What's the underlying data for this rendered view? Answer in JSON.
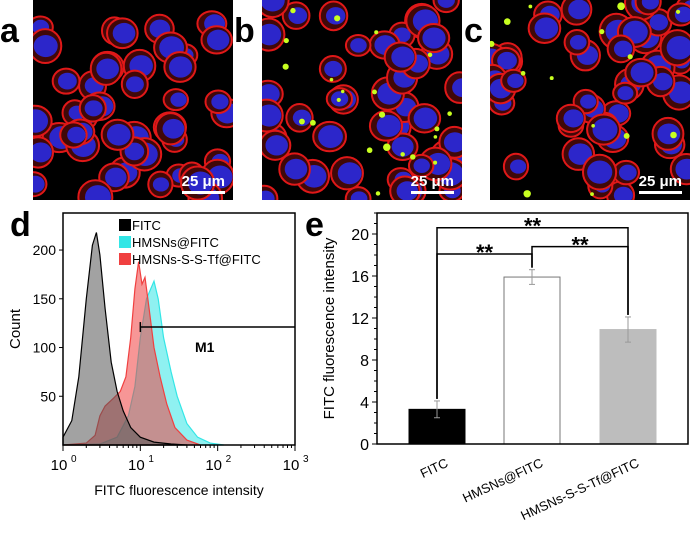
{
  "panels": {
    "a": {
      "label": "a",
      "scale_bar": "25 μm",
      "green_spots": 0
    },
    "b": {
      "label": "b",
      "scale_bar": "25 μm",
      "green_spots": 22
    },
    "c": {
      "label": "c",
      "scale_bar": "25 μm",
      "green_spots": 14
    },
    "d": {
      "label": "d"
    },
    "e": {
      "label": "e"
    }
  },
  "colors": {
    "nucleus": "#2a2ae0",
    "membrane": "#e01818",
    "fitc": "#c8ff20"
  },
  "chart_data": [
    {
      "type": "area",
      "panel": "d",
      "xlabel": "FITC fluorescence intensity",
      "ylabel": "Count",
      "xscale": "log",
      "xlim": [
        1,
        1000
      ],
      "ylim": [
        0,
        238
      ],
      "xticks": [
        {
          "v": 1,
          "base": "10",
          "exp": "0"
        },
        {
          "v": 10,
          "base": "10",
          "exp": "1"
        },
        {
          "v": 100,
          "base": "10",
          "exp": "2"
        },
        {
          "v": 1000,
          "base": "10",
          "exp": "3"
        }
      ],
      "yticks": [
        50,
        100,
        150,
        200
      ],
      "legend_position": "top",
      "gate": {
        "label": "M1",
        "from": 10,
        "to": 1000,
        "count": 121
      },
      "series": [
        {
          "name": "HMSNs@FITC",
          "color": "#33e6e6",
          "points": [
            [
              1,
              0
            ],
            [
              3,
              1
            ],
            [
              5,
              8
            ],
            [
              7,
              30
            ],
            [
              8.5,
              60
            ],
            [
              10,
              110
            ],
            [
              12,
              150
            ],
            [
              15,
              168
            ],
            [
              17,
              150
            ],
            [
              20,
              110
            ],
            [
              25,
              75
            ],
            [
              30,
              50
            ],
            [
              40,
              22
            ],
            [
              55,
              8
            ],
            [
              80,
              2
            ],
            [
              120,
              0
            ]
          ]
        },
        {
          "name": "HMSNs-S-S-Tf@FITC",
          "color": "#f04040",
          "points": [
            [
              1,
              0
            ],
            [
              2,
              2
            ],
            [
              2.6,
              10
            ],
            [
              3,
              30
            ],
            [
              3.5,
              40
            ],
            [
              4.5,
              48
            ],
            [
              5.5,
              55
            ],
            [
              6.5,
              70
            ],
            [
              7.5,
              110
            ],
            [
              8.5,
              160
            ],
            [
              9.5,
              188
            ],
            [
              10.5,
              165
            ],
            [
              11.5,
              172
            ],
            [
              13,
              140
            ],
            [
              15,
              100
            ],
            [
              18,
              70
            ],
            [
              22,
              42
            ],
            [
              28,
              18
            ],
            [
              40,
              5
            ],
            [
              60,
              0
            ]
          ]
        },
        {
          "name": "FITC",
          "color": "#555555",
          "points": [
            [
              1,
              8
            ],
            [
              1.3,
              25
            ],
            [
              1.6,
              70
            ],
            [
              2,
              150
            ],
            [
              2.4,
              205
            ],
            [
              2.7,
              218
            ],
            [
              3,
              195
            ],
            [
              3.5,
              140
            ],
            [
              4.2,
              85
            ],
            [
              5,
              55
            ],
            [
              6,
              35
            ],
            [
              7.5,
              18
            ],
            [
              10,
              8
            ],
            [
              15,
              3
            ],
            [
              25,
              1
            ],
            [
              40,
              0
            ]
          ]
        }
      ]
    },
    {
      "type": "bar",
      "panel": "e",
      "ylabel": "FITC fluorescence intensity",
      "ylim": [
        0,
        22
      ],
      "yticks": [
        0,
        4,
        8,
        12,
        16,
        20
      ],
      "categories": [
        "FITC",
        "HMSNs@FITC",
        "HMSNs-S-S-Tf@FITC"
      ],
      "values": [
        3.3,
        15.9,
        10.9
      ],
      "errors": [
        0.8,
        0.7,
        1.2
      ],
      "bar_colors": [
        "#000000",
        "#ffffff",
        "#bdbdbd"
      ],
      "significance": [
        {
          "from": 0,
          "to": 2,
          "level": 20.6,
          "label": "**"
        },
        {
          "from": 0,
          "to": 1,
          "level": 18.1,
          "label": "**"
        },
        {
          "from": 1,
          "to": 2,
          "level": 18.8,
          "label": "**"
        }
      ]
    }
  ]
}
